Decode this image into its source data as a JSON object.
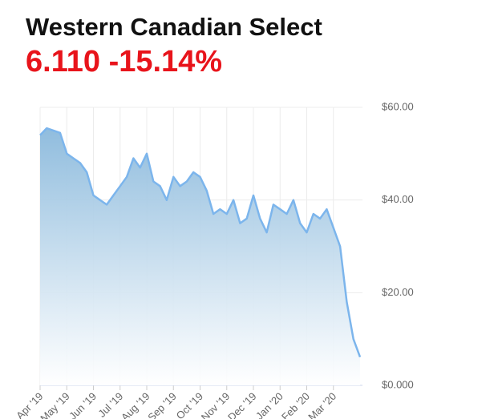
{
  "chart_data": {
    "type": "area",
    "title": "Western Canadian Select",
    "price": "6.110",
    "change": "-15.14%",
    "categories": [
      "Apr '19",
      null,
      null,
      null,
      "May '19",
      null,
      null,
      null,
      "Jun '19",
      null,
      null,
      null,
      "Jul '19",
      null,
      null,
      null,
      "Aug '19",
      null,
      null,
      null,
      "Sep '19",
      null,
      null,
      null,
      "Oct '19",
      null,
      null,
      null,
      "Nov '19",
      null,
      null,
      null,
      "Dec '19",
      null,
      null,
      null,
      "Jan '20",
      null,
      null,
      null,
      "Feb '20",
      null,
      null,
      null,
      "Mar '20",
      null,
      null,
      null,
      null
    ],
    "values": [
      54,
      55.5,
      55,
      54.5,
      50,
      49,
      48,
      46,
      41,
      40,
      39,
      41,
      43,
      45,
      49,
      47,
      50,
      44,
      43,
      40,
      45,
      43,
      44,
      46,
      45,
      42,
      37,
      38,
      37,
      40,
      35,
      36,
      41,
      36,
      33,
      39,
      38,
      37,
      40,
      35,
      33,
      37,
      36,
      38,
      34,
      30,
      18,
      10,
      6.11
    ],
    "color": "#7cb5ec",
    "ylim": [
      0,
      60
    ],
    "yticks": [
      {
        "value": 0,
        "label": "$0.000"
      },
      {
        "value": 20,
        "label": "$20.00"
      },
      {
        "value": 40,
        "label": "$40.00"
      },
      {
        "value": 60,
        "label": "$60.00"
      }
    ],
    "grid": true
  }
}
